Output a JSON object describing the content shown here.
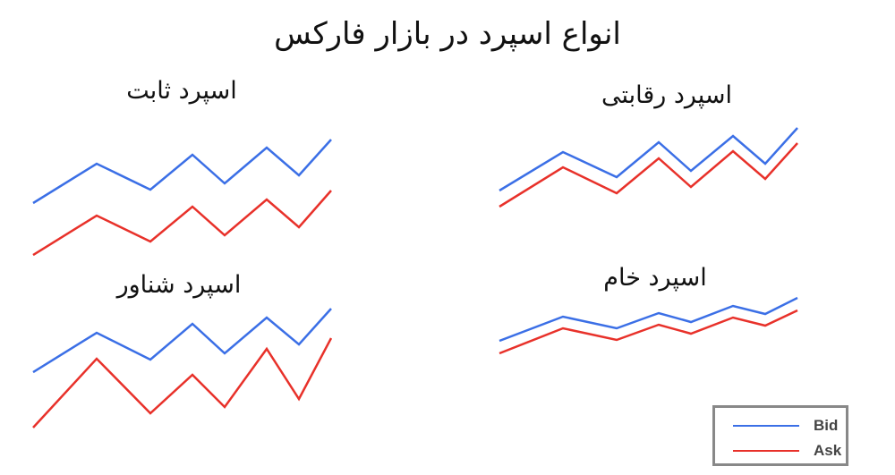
{
  "title": "انواع اسپرد در بازار فارکس",
  "colors": {
    "bid": "#3b6fe6",
    "ask": "#e8312a",
    "legend_border": "#888888"
  },
  "legend": {
    "bid_label": "Bid",
    "ask_label": "Ask"
  },
  "chart_data": [
    {
      "type": "line",
      "title": "اسپرد ثابت",
      "series": [
        {
          "name": "Bid",
          "values": [
            7.3,
            11.7,
            8.8,
            12.7,
            9.5,
            13.5,
            10.4,
            14.4
          ]
        },
        {
          "name": "Ask",
          "values": [
            1.5,
            5.9,
            3.0,
            6.9,
            3.7,
            7.7,
            4.6,
            8.7
          ]
        }
      ]
    },
    {
      "type": "line",
      "title": "اسپرد رقابتی",
      "series": [
        {
          "name": "Bid",
          "values": [
            3.7,
            8.0,
            5.2,
            9.1,
            5.9,
            9.8,
            6.7,
            10.7
          ]
        },
        {
          "name": "Ask",
          "values": [
            1.9,
            6.3,
            3.4,
            7.3,
            4.1,
            8.1,
            5.0,
            9.0
          ]
        }
      ]
    },
    {
      "type": "line",
      "title": "اسپرد شناور",
      "series": [
        {
          "name": "Bid",
          "values": [
            7.4,
            11.8,
            8.8,
            12.8,
            9.5,
            13.5,
            10.5,
            14.5
          ]
        },
        {
          "name": "Ask",
          "values": [
            1.2,
            8.9,
            2.8,
            7.1,
            3.5,
            10.0,
            4.4,
            11.2
          ]
        }
      ]
    },
    {
      "type": "line",
      "title": "اسپرد خام",
      "series": [
        {
          "name": "Bid",
          "values": [
            2.9,
            5.6,
            4.3,
            6.0,
            5.0,
            6.8,
            5.9,
            7.7
          ]
        },
        {
          "name": "Ask",
          "values": [
            1.5,
            4.3,
            3.0,
            4.7,
            3.7,
            5.5,
            4.6,
            6.3
          ]
        }
      ]
    }
  ]
}
